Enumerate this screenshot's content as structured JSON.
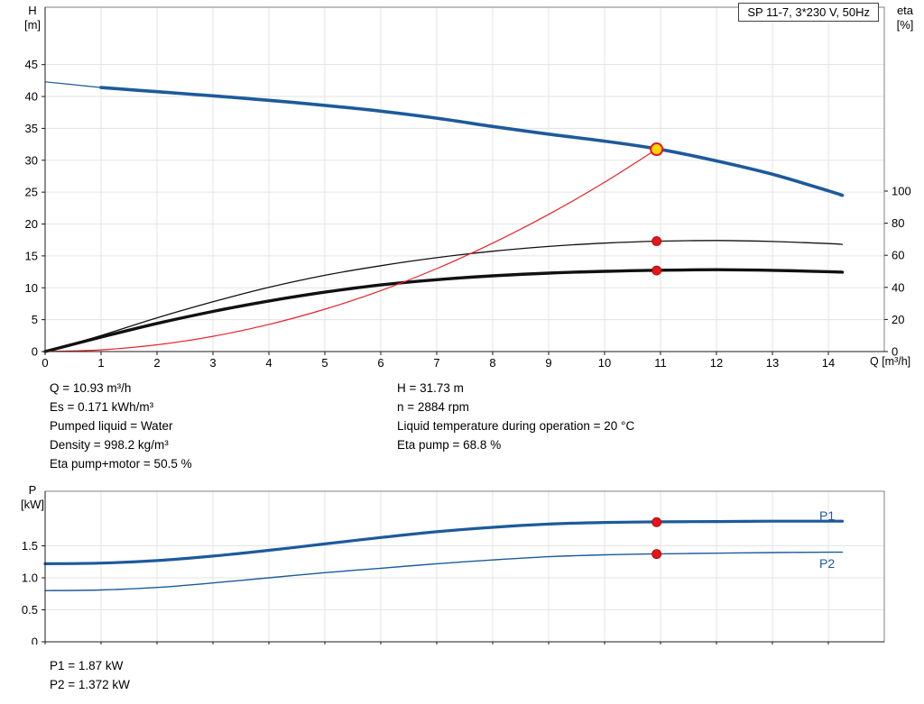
{
  "header": {
    "title_box": "SP 11-7, 3*230 V, 50Hz"
  },
  "axes_labels": {
    "h1": "H",
    "h2": "[m]",
    "eta1": "eta",
    "eta2": "[%]",
    "q": "Q [m³/h]",
    "p1": "P",
    "p2": "[kW]"
  },
  "series_labels": {
    "p1": "P1",
    "p2": "P2"
  },
  "annotations": {
    "col1": [
      "Q = 10.93 m³/h",
      "Es = 0.171 kWh/m³",
      "Pumped liquid = Water",
      "Density = 998.2 kg/m³",
      "Eta pump+motor = 50.5 %"
    ],
    "col2": [
      "H = 31.73 m",
      "n = 2884 rpm",
      "Liquid temperature during operation = 20 °C",
      "Eta pump = 68.8 %"
    ],
    "bottom": [
      "P1 = 1.87 kW",
      "P2 = 1.372 kW"
    ]
  },
  "colors": {
    "curve_blue": "#1d5a9b",
    "curve_black": "#111111",
    "curve_red": "#e8232a",
    "marker_red": "#e8141c",
    "marker_yellow": "#ffd400",
    "grid": "#e3e3e3",
    "border": "#7f7f7f",
    "axis": "#1a1a1a"
  },
  "chart_data": [
    {
      "type": "line",
      "title": "SP 11-7, 3*230 V, 50Hz",
      "xlabel": "Q [m³/h]",
      "ylabel_left": "H [m]",
      "ylabel_right": "eta [%]",
      "xlim": [
        0,
        15
      ],
      "ylim_left": [
        0,
        54
      ],
      "ylim_right": [
        0,
        214.6
      ],
      "xticks": {
        "values": [
          0,
          1,
          2,
          3,
          4,
          5,
          6,
          7,
          8,
          9,
          10,
          11,
          12,
          13,
          14
        ],
        "labels": [
          "0",
          "1",
          "2",
          "3",
          "4",
          "5",
          "6",
          "7",
          "8",
          "9",
          "10",
          "11",
          "12",
          "13",
          "14"
        ]
      },
      "yticks_left": {
        "values": [
          0,
          5,
          10,
          15,
          20,
          25,
          30,
          35,
          40,
          45
        ],
        "labels": [
          "0",
          "5",
          "10",
          "15",
          "20",
          "25",
          "30",
          "35",
          "40",
          "45"
        ]
      },
      "yticks_right": {
        "values": [
          0,
          20,
          40,
          60,
          80,
          100
        ],
        "labels": [
          "0",
          "20",
          "40",
          "60",
          "80",
          "100"
        ]
      },
      "grid": true,
      "series": [
        {
          "name": "hq-lead-in",
          "axis": "left",
          "color": "#1d5a9b",
          "width": 1.2,
          "x": [
            0,
            0.5,
            1
          ],
          "y": [
            42.3,
            41.85,
            41.4
          ]
        },
        {
          "name": "hq-curve",
          "axis": "left",
          "color": "#1d5a9b",
          "width": 3.6,
          "x": [
            1,
            2,
            3,
            4,
            5,
            6,
            7,
            8,
            9,
            10,
            11,
            12,
            13,
            14,
            14.25
          ],
          "y": [
            41.4,
            40.75,
            40.1,
            39.4,
            38.6,
            37.7,
            36.6,
            35.3,
            34.1,
            33.0,
            31.7,
            29.9,
            27.8,
            25.2,
            24.5
          ]
        },
        {
          "name": "eta-pump-curve",
          "axis": "right",
          "color": "#111111",
          "width": 1.3,
          "x": [
            0,
            1,
            2,
            3,
            4,
            5,
            6,
            7,
            8,
            9,
            10,
            11,
            12,
            13,
            14,
            14.25
          ],
          "y": [
            0,
            10,
            21,
            31,
            40,
            47.5,
            53.5,
            58.5,
            62.5,
            65.5,
            67.6,
            68.8,
            69.2,
            68.6,
            67.3,
            66.8
          ]
        },
        {
          "name": "eta-pump-motor-curve",
          "axis": "right",
          "color": "#111111",
          "width": 3.4,
          "x": [
            0,
            1,
            2,
            3,
            4,
            5,
            6,
            7,
            8,
            9,
            10,
            11,
            12,
            13,
            14,
            14.25
          ],
          "y": [
            0,
            9,
            17.5,
            25,
            31.5,
            37,
            41.5,
            44.8,
            47.2,
            48.9,
            50.0,
            50.7,
            51.0,
            50.6,
            49.8,
            49.5
          ]
        },
        {
          "name": "system-curve",
          "axis": "left",
          "color": "#e8232a",
          "width": 1.2,
          "x": [
            0,
            1,
            2,
            3,
            4,
            5,
            6,
            7,
            8,
            9,
            10,
            10.93
          ],
          "y": [
            0,
            0.27,
            1.06,
            2.39,
            4.25,
            6.64,
            9.56,
            13.01,
            17.0,
            21.51,
            26.56,
            31.73
          ]
        }
      ],
      "markers": [
        {
          "name": "operating-point",
          "axis": "left",
          "x": 10.93,
          "y": 31.73,
          "r": 6.5,
          "fill": "#ffd400",
          "stroke": "#e8141c",
          "stroke_width": 2
        },
        {
          "name": "eta-pump-point",
          "axis": "right",
          "x": 10.93,
          "y": 68.8,
          "r": 5,
          "fill": "#e8141c",
          "stroke": "#9b0000",
          "stroke_width": 0.8
        },
        {
          "name": "eta-pump-motor-point",
          "axis": "right",
          "x": 10.93,
          "y": 50.5,
          "r": 5,
          "fill": "#e8141c",
          "stroke": "#9b0000",
          "stroke_width": 0.8
        }
      ]
    },
    {
      "type": "line",
      "title": "Power curves",
      "xlabel": "",
      "ylabel_left": "P [kW]",
      "ylabel_right": "",
      "xlim": [
        0,
        15
      ],
      "ylim_left": [
        0,
        2.353
      ],
      "ylim_right": null,
      "xticks": {
        "values": [
          0,
          1,
          2,
          3,
          4,
          5,
          6,
          7,
          8,
          9,
          10,
          11,
          12,
          13,
          14
        ],
        "labels": null
      },
      "yticks_left": {
        "values": [
          0,
          0.5,
          1,
          1.5
        ],
        "labels": [
          "0",
          "0.5",
          "1.0",
          "1.5"
        ]
      },
      "yticks_right": null,
      "grid": true,
      "series": [
        {
          "name": "p1-curve",
          "axis": "left",
          "color": "#1d5a9b",
          "width": 3.2,
          "x": [
            0,
            1,
            2,
            3,
            4,
            5,
            6,
            7,
            8,
            9,
            10,
            11,
            12,
            13,
            14,
            14.25
          ],
          "y": [
            1.22,
            1.23,
            1.27,
            1.34,
            1.43,
            1.53,
            1.63,
            1.72,
            1.79,
            1.84,
            1.865,
            1.875,
            1.88,
            1.885,
            1.885,
            1.885
          ]
        },
        {
          "name": "p2-curve",
          "axis": "left",
          "color": "#1d5a9b",
          "width": 1.4,
          "x": [
            0,
            1,
            2,
            3,
            4,
            5,
            6,
            7,
            8,
            9,
            10,
            11,
            12,
            13,
            14,
            14.25
          ],
          "y": [
            0.8,
            0.81,
            0.85,
            0.92,
            1.0,
            1.08,
            1.15,
            1.22,
            1.28,
            1.33,
            1.36,
            1.375,
            1.385,
            1.395,
            1.4,
            1.4
          ]
        }
      ],
      "markers": [
        {
          "name": "p1-point",
          "axis": "left",
          "x": 10.93,
          "y": 1.87,
          "r": 5,
          "fill": "#e8141c",
          "stroke": "#9b0000",
          "stroke_width": 0.8
        },
        {
          "name": "p2-point",
          "axis": "left",
          "x": 10.93,
          "y": 1.372,
          "r": 5,
          "fill": "#e8141c",
          "stroke": "#9b0000",
          "stroke_width": 0.8
        }
      ]
    }
  ]
}
